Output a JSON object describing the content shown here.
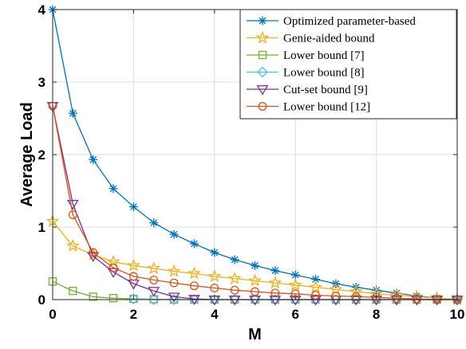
{
  "chart_data": {
    "type": "line",
    "xlabel": "M",
    "ylabel": "Average Load",
    "xlim": [
      0,
      10
    ],
    "ylim": [
      0,
      4
    ],
    "xticks": [
      "0",
      "2",
      "4",
      "6",
      "8",
      "10"
    ],
    "yticks": [
      "0",
      "1",
      "2",
      "3",
      "4"
    ],
    "grid": true,
    "legend_position": "top-right",
    "x": [
      0,
      0.5,
      1,
      1.5,
      2,
      2.5,
      3,
      3.5,
      4,
      4.5,
      5,
      5.5,
      6,
      6.5,
      7,
      7.5,
      8,
      8.5,
      9,
      9.5,
      10
    ],
    "series": [
      {
        "name": "Optimized parameter-based",
        "color": "#0072BD",
        "marker": "asterisk",
        "values": [
          4.0,
          2.57,
          1.93,
          1.53,
          1.28,
          1.06,
          0.9,
          0.77,
          0.65,
          0.55,
          0.47,
          0.4,
          0.34,
          0.28,
          0.22,
          0.17,
          0.13,
          0.09,
          0.05,
          0.02,
          0.0
        ]
      },
      {
        "name": "Genie-aided bound",
        "color": "#EDB120",
        "marker": "star",
        "values": [
          1.08,
          0.74,
          0.62,
          0.52,
          0.47,
          0.43,
          0.39,
          0.36,
          0.32,
          0.29,
          0.26,
          0.23,
          0.2,
          0.17,
          0.14,
          0.11,
          0.08,
          0.06,
          0.04,
          0.02,
          0.0
        ]
      },
      {
        "name": "Lower bound [7]",
        "color": "#77AC30",
        "marker": "square",
        "values": [
          0.25,
          0.12,
          0.04,
          0.02,
          0.01,
          0.005,
          0.0,
          0.0,
          0.0,
          0.0,
          0.0,
          0.0,
          0.0,
          0.0,
          0.0,
          0.0,
          0.0,
          0.0,
          0.0,
          0.0,
          0.0
        ]
      },
      {
        "name": "Lower bound [8]",
        "color": "#4DBEEE",
        "marker": "diamond",
        "values": [
          null,
          null,
          null,
          null,
          0.01,
          0.0,
          0.0,
          0.0,
          0.0,
          0.0,
          0.0,
          0.0,
          0.0,
          0.0,
          0.0,
          0.0,
          0.0,
          0.0,
          0.0,
          0.0,
          0.0
        ]
      },
      {
        "name": "Cut-set bound [9]",
        "color": "#7E2F8E",
        "marker": "triangle-down",
        "values": [
          2.67,
          1.32,
          0.6,
          0.38,
          0.22,
          0.12,
          0.04,
          0.01,
          0.0,
          0.0,
          0.0,
          0.0,
          0.0,
          0.0,
          0.0,
          0.0,
          0.0,
          0.0,
          0.0,
          0.0,
          0.0
        ]
      },
      {
        "name": "Lower bound [12]",
        "color": "#D95319",
        "marker": "circle",
        "values": [
          2.67,
          1.17,
          0.65,
          0.44,
          0.32,
          0.27,
          0.23,
          0.19,
          0.16,
          0.13,
          0.11,
          0.09,
          0.08,
          0.06,
          0.05,
          0.04,
          0.03,
          0.02,
          0.01,
          0.0,
          0.0
        ]
      }
    ]
  }
}
